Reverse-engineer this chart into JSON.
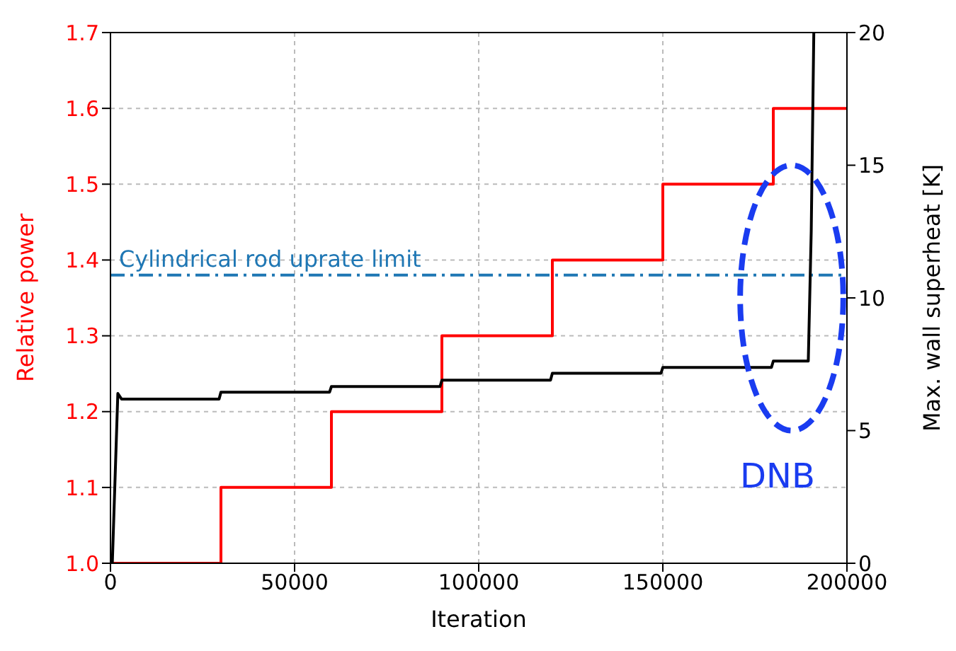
{
  "chart_data": {
    "type": "line",
    "xlabel": "Iteration",
    "ylabel": "Relative power",
    "y2label": "Max. wall superheat [K]",
    "xlim": [
      0,
      200000
    ],
    "xticks": [
      0,
      50000,
      100000,
      150000,
      200000
    ],
    "ylim": [
      1.0,
      1.7
    ],
    "yticks": [
      {
        "value": 1.0,
        "label": "1.0"
      },
      1.1,
      1.2,
      1.3,
      1.4,
      1.5,
      1.6,
      1.7
    ],
    "y2lim": [
      0,
      20
    ],
    "y2ticks": [
      0,
      5,
      10,
      15,
      20
    ],
    "grid": true,
    "legend": false,
    "series": [
      {
        "type": "step",
        "color": "#ff0000",
        "x": [
          0,
          30000,
          60000,
          90000,
          120000,
          150000,
          180000,
          200000
        ],
        "values": [
          1.0,
          1.1,
          1.2,
          1.3,
          1.4,
          1.5,
          1.6,
          1.6
        ]
      },
      {
        "type": "line",
        "axis": "y2",
        "color": "#000000",
        "x": [
          500,
          2000,
          3000,
          29500,
          30000,
          59500,
          60000,
          89500,
          90000,
          119500,
          120000,
          149500,
          150000,
          179500,
          180000,
          189500,
          190300,
          191000
        ],
        "values": [
          0,
          6.4,
          6.19,
          6.19,
          6.45,
          6.45,
          6.66,
          6.66,
          6.9,
          6.9,
          7.16,
          7.16,
          7.38,
          7.38,
          7.62,
          7.62,
          12.5,
          20
        ]
      }
    ],
    "ref_lines": [
      {
        "axis": "y",
        "value": 1.38,
        "label": "Cylindrical rod uprate limit",
        "color": "#1f77b4",
        "line_style": "dashdot"
      }
    ],
    "annotations": [
      "DNB"
    ]
  }
}
